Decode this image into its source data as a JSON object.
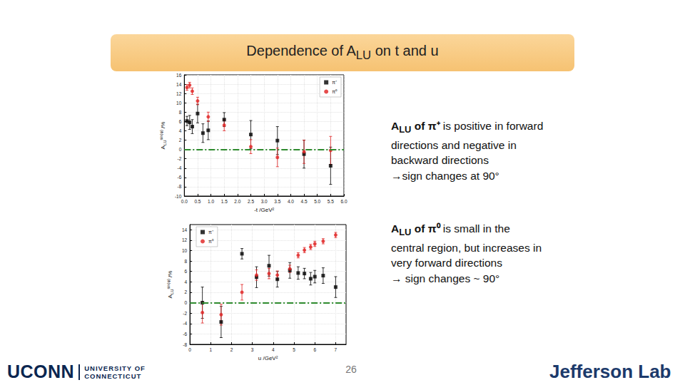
{
  "slide": {
    "title": {
      "text": "Dependence of A",
      "subscript": "LU",
      "suffix": " on t and u"
    },
    "notes": [
      {
        "subject": "A",
        "subject_subscript": "LU",
        "particle": " of π⁺",
        "text": " is positive in forward directions and negative in backward directions",
        "conclusion": "→sign changes at 90°"
      },
      {
        "subject": "A",
        "subject_subscript": "LU",
        "particle": " of π⁰",
        "text": " is small in the central region, but increases in very forward directions",
        "conclusion": "→ sign changes ~ 90°"
      }
    ],
    "page_number": "26",
    "logos": {
      "left_main": "UCONN",
      "left_sub": [
        "UNIVERSITY OF",
        "CONNECTICUT"
      ],
      "right": "Jefferson Lab"
    }
  },
  "chart_data": [
    {
      "type": "scatter",
      "xlabel": "-t /GeV²",
      "ylabel": {
        "text": "A",
        "subscript": "LU",
        "superscript": "sin(φ)",
        "suffix": " /%"
      },
      "xlim": [
        0,
        6
      ],
      "xticks": [
        {
          "value": 0,
          "label": "0.0"
        },
        {
          "value": 0.5,
          "label": "0.5"
        },
        {
          "value": 1,
          "label": "1.0"
        },
        {
          "value": 1.5,
          "label": "1.5"
        },
        {
          "value": 2,
          "label": "2.0"
        },
        {
          "value": 2.5,
          "label": "2.5"
        },
        {
          "value": 3,
          "label": "3.0"
        },
        {
          "value": 3.5,
          "label": "3.5"
        },
        {
          "value": 4,
          "label": "4.0"
        },
        {
          "value": 4.5,
          "label": "4.5"
        },
        {
          "value": 5,
          "label": "5.0"
        },
        {
          "value": 5.5,
          "label": "5.5"
        },
        {
          "value": 6,
          "label": "6.0"
        }
      ],
      "ylim": [
        -10,
        16
      ],
      "yticks": [
        -10,
        -8,
        -6,
        -4,
        -2,
        0,
        2,
        4,
        6,
        8,
        10,
        12,
        14,
        16
      ],
      "grid": true,
      "legend": "upper right",
      "reference_line": 0,
      "series": [
        {
          "name": "π⁺",
          "color": "#000000",
          "marker": "square",
          "x": [
            0.1,
            0.2,
            0.3,
            0.5,
            0.7,
            0.9,
            1.5,
            2.5,
            3.5,
            4.5,
            5.5
          ],
          "values": [
            6.1,
            5.8,
            4.9,
            7.7,
            3.5,
            4.1,
            6.4,
            3.2,
            1.9,
            -1.0,
            -3.5
          ],
          "errors": [
            1.0,
            1.5,
            1.5,
            2.0,
            2.0,
            2.0,
            1.5,
            3.0,
            3.0,
            3.0,
            4.0
          ]
        },
        {
          "name": "π⁰",
          "color": "#e02020",
          "marker": "circle",
          "x": [
            0.1,
            0.2,
            0.3,
            0.5,
            0.9,
            1.5,
            2.5,
            3.5,
            4.5,
            5.5
          ],
          "values": [
            13.3,
            13.8,
            12.5,
            10.4,
            7.0,
            5.2,
            0.6,
            -1.7,
            -0.5,
            -0.2
          ],
          "errors": [
            0.6,
            0.6,
            0.7,
            0.8,
            1.0,
            1.2,
            1.5,
            2.0,
            2.5,
            3.0
          ]
        }
      ]
    },
    {
      "type": "scatter",
      "xlabel": "u /GeV²",
      "ylabel": {
        "text": "A",
        "subscript": "LU",
        "superscript": "sin(φ)",
        "suffix": " /%"
      },
      "xlim": [
        0,
        7.5
      ],
      "xticks": [
        0,
        1,
        2,
        3,
        4,
        5,
        6,
        7
      ],
      "ylim": [
        -8,
        15
      ],
      "yticks": [
        -8,
        -6,
        -4,
        -2,
        0,
        2,
        4,
        6,
        8,
        10,
        12,
        14
      ],
      "grid": true,
      "legend": "upper left",
      "reference_line": 0,
      "series": [
        {
          "name": "π⁺",
          "color": "#000000",
          "marker": "square",
          "x": [
            0.6,
            1.5,
            2.5,
            3.2,
            3.8,
            4.2,
            4.8,
            5.2,
            5.5,
            5.8,
            6.0,
            6.4,
            7.0
          ],
          "values": [
            0.0,
            -3.7,
            9.4,
            4.9,
            7.1,
            4.5,
            6.2,
            5.7,
            5.6,
            4.6,
            5.0,
            5.2,
            3.0
          ],
          "errors": [
            3.0,
            3.0,
            1.0,
            2.0,
            2.0,
            1.5,
            1.5,
            1.2,
            1.0,
            1.2,
            1.2,
            1.5,
            2.0
          ]
        },
        {
          "name": "π⁰",
          "color": "#e02020",
          "marker": "circle",
          "x": [
            0.6,
            1.5,
            2.5,
            3.2,
            3.8,
            4.2,
            4.8,
            5.2,
            5.5,
            5.8,
            6.0,
            6.4,
            7.0
          ],
          "values": [
            -1.9,
            -2.3,
            2.0,
            5.3,
            5.6,
            5.3,
            6.5,
            9.1,
            10.1,
            10.7,
            11.3,
            11.8,
            13.0
          ],
          "errors": [
            2.0,
            2.0,
            1.5,
            1.0,
            1.0,
            0.8,
            0.7,
            0.5,
            0.5,
            0.5,
            0.5,
            0.5,
            0.5
          ]
        }
      ]
    }
  ]
}
